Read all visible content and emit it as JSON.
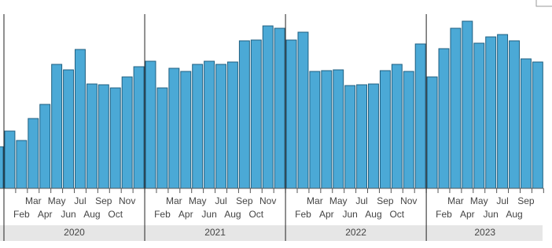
{
  "chart_data": {
    "type": "bar",
    "categories": [
      null,
      null,
      "Feb",
      "Mar",
      "Apr",
      "May",
      "Jun",
      "Jul",
      "Aug",
      "Sep",
      "Oct",
      "Nov",
      null,
      null,
      "Feb",
      "Mar",
      "Apr",
      "May",
      "Jun",
      "Jul",
      "Aug",
      "Sep",
      "Oct",
      "Nov",
      null,
      null,
      "Feb",
      "Mar",
      "Apr",
      "May",
      "Jun",
      "Jul",
      "Aug",
      "Sep",
      "Oct",
      "Nov",
      null,
      null,
      "Feb",
      "Mar",
      "Apr",
      "May",
      "Jun",
      "Jul",
      "Aug",
      "Sep",
      null
    ],
    "values": [
      53,
      73,
      61,
      89,
      107,
      158,
      151,
      177,
      133,
      132,
      128,
      142,
      155,
      162,
      128,
      153,
      149,
      158,
      162,
      158,
      161,
      188,
      189,
      207,
      204,
      189,
      199,
      149,
      150,
      151,
      131,
      132,
      133,
      150,
      158,
      149,
      184,
      142,
      178,
      204,
      213,
      185,
      193,
      196,
      188,
      165,
      161
    ],
    "years": [
      "2020",
      "2021",
      "2022",
      "2023"
    ],
    "color": "#4ba9d6",
    "ylim": [
      0,
      220
    ]
  }
}
